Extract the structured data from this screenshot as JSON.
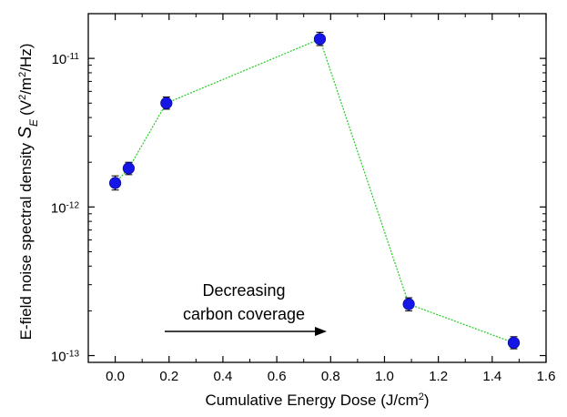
{
  "chart_data": {
    "type": "scatter",
    "xlabel": "Cumulative Energy Dose (J/cm²)",
    "ylabel": "E-field noise spectral density S_E (V²/m²/Hz)",
    "ylabel_prefix": "E-field noise spectral density ",
    "ylabel_symbol": "S",
    "ylabel_symbol_sub": "E",
    "ylabel_units": "(V",
    "ylabel_units_exp1": "2",
    "ylabel_units_mid": "/m",
    "ylabel_units_exp2": "2",
    "ylabel_units_end": "/Hz)",
    "xlabel_main": "Cumulative Energy Dose (J/cm",
    "xlabel_exp": "2",
    "xlabel_end": ")",
    "xlim": [
      -0.1,
      1.6
    ],
    "ylim": [
      9e-14,
      2e-11
    ],
    "y_scale": "log",
    "x_ticks": [
      0.0,
      0.2,
      0.4,
      0.6,
      0.8,
      1.0,
      1.2,
      1.4,
      1.6
    ],
    "x_tick_labels": [
      "0.0",
      "0.2",
      "0.4",
      "0.6",
      "0.8",
      "1.0",
      "1.2",
      "1.4",
      "1.6"
    ],
    "y_ticks": [
      {
        "value": 1e-13,
        "base": "10",
        "exp": "-13"
      },
      {
        "value": 1e-12,
        "base": "10",
        "exp": "-12"
      },
      {
        "value": 1e-11,
        "base": "10",
        "exp": "-11"
      }
    ],
    "series": [
      {
        "marker_color": "#1515e6",
        "line_color": "#22cc22",
        "line_style": "dotted",
        "points": [
          {
            "x": 0.0,
            "y": 1.45e-12,
            "err_lo": 1.3e-12,
            "err_hi": 1.62e-12
          },
          {
            "x": 0.05,
            "y": 1.82e-12,
            "err_lo": 1.65e-12,
            "err_hi": 2e-12
          },
          {
            "x": 0.19,
            "y": 5e-12,
            "err_lo": 4.55e-12,
            "err_hi": 5.5e-12
          },
          {
            "x": 0.76,
            "y": 1.35e-11,
            "err_lo": 1.22e-11,
            "err_hi": 1.5e-11
          },
          {
            "x": 1.09,
            "y": 2.22e-13,
            "err_lo": 2e-13,
            "err_hi": 2.45e-13
          },
          {
            "x": 1.48,
            "y": 1.22e-13,
            "err_lo": 1.11e-13,
            "err_hi": 1.34e-13
          }
        ]
      }
    ],
    "annotation": {
      "line1": "Decreasing",
      "line2": "carbon coverage",
      "arrow_direction": "right"
    },
    "grid": false,
    "legend": "none"
  }
}
